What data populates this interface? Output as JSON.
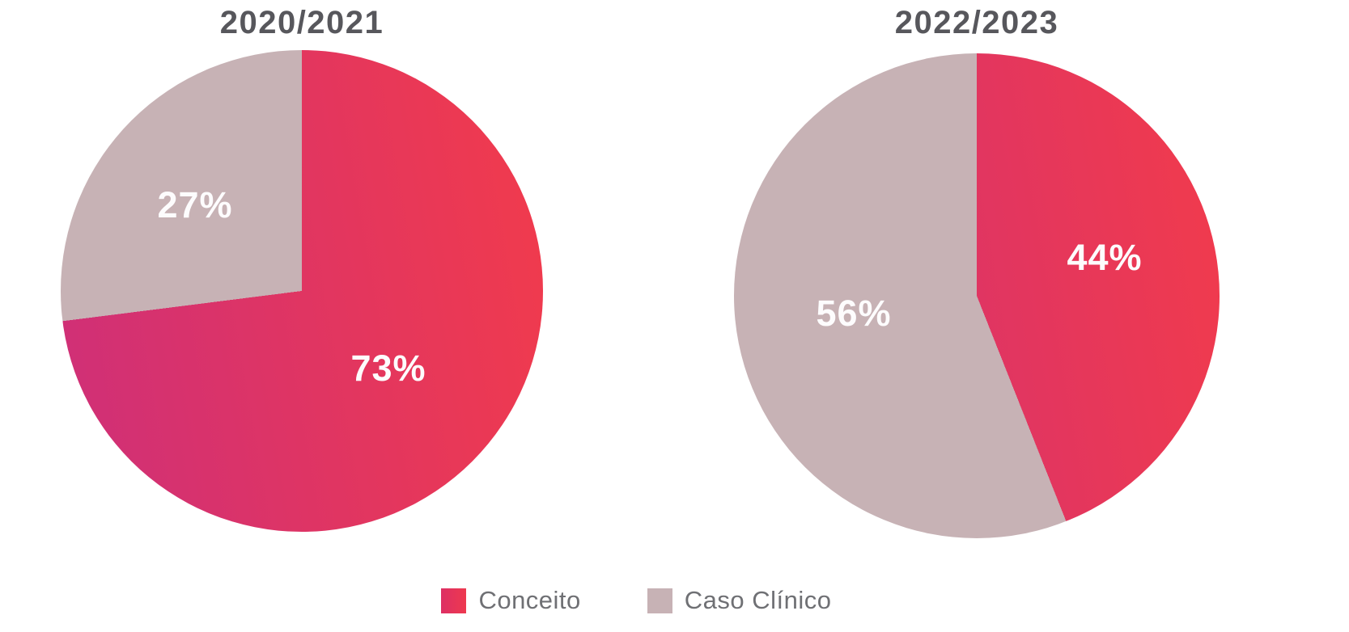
{
  "colors": {
    "conceito_gradient_start": "#ce2f79",
    "conceito_gradient_end": "#f23b4b",
    "caso_clinico": "#c7b2b5",
    "title_text": "#57575c",
    "data_label_text": "#fdfcfd",
    "legend_text": "#6f7074"
  },
  "chart_data": [
    {
      "type": "pie",
      "title": "2020/2021",
      "labels": [
        "Conceito",
        "Caso Clínico"
      ],
      "values": [
        73,
        27
      ],
      "unit": "%",
      "data_labels": [
        "73%",
        "27%"
      ],
      "start_angle_deg": 0,
      "direction": "clockwise",
      "slice_colors": [
        "gradient(#ce2f79→#f23b4b)",
        "#c7b2b5"
      ]
    },
    {
      "type": "pie",
      "title": "2022/2023",
      "labels": [
        "Conceito",
        "Caso Clínico"
      ],
      "values": [
        44,
        56
      ],
      "unit": "%",
      "data_labels": [
        "44%",
        "56%"
      ],
      "start_angle_deg": 0,
      "direction": "clockwise",
      "slice_colors": [
        "gradient(#ce2f79→#f23b4b)",
        "#c7b2b5"
      ]
    }
  ],
  "legend": {
    "position": "bottom-center",
    "items": [
      {
        "label": "Conceito",
        "color": "#dd2f64",
        "color2": "#ee394f"
      },
      {
        "label": "Caso Clínico",
        "color": "#c7b2b5"
      }
    ]
  }
}
